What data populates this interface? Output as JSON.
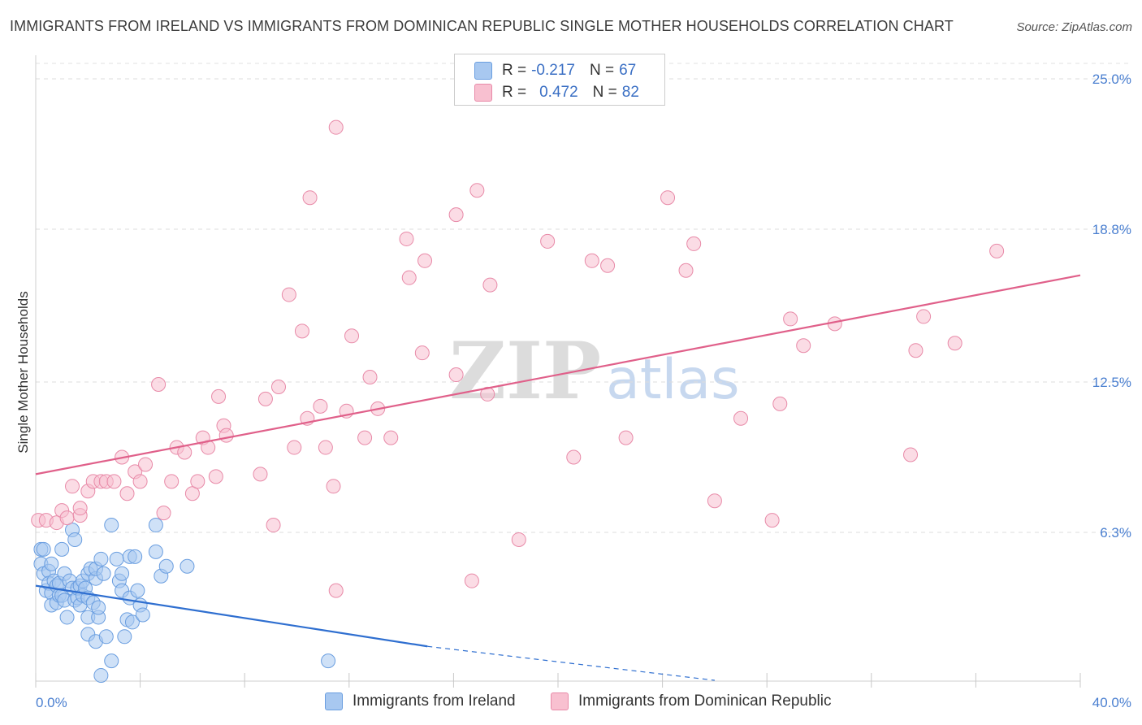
{
  "title": "IMMIGRANTS FROM IRELAND VS IMMIGRANTS FROM DOMINICAN REPUBLIC SINGLE MOTHER HOUSEHOLDS CORRELATION CHART",
  "source": "Source: ZipAtlas.com",
  "watermark": {
    "zip": "ZIP",
    "atlas": "atlas"
  },
  "legend": {
    "rows": [
      {
        "r_label": "R =",
        "r_value": "-0.217",
        "n_label": "N =",
        "n_value": "67",
        "color": "#a8c8f0",
        "border": "#6a9ee0"
      },
      {
        "r_label": "R =",
        "r_value": "0.472",
        "n_label": "N =",
        "n_value": "82",
        "color": "#f8c0d0",
        "border": "#e88aa8"
      }
    ]
  },
  "bottom_legend": [
    {
      "label": "Immigrants from Ireland",
      "color": "#a8c8f0",
      "border": "#6a9ee0"
    },
    {
      "label": "Immigrants from Dominican Republic",
      "color": "#f8c0d0",
      "border": "#e88aa8"
    }
  ],
  "chart_data": {
    "type": "scatter",
    "title": "IMMIGRANTS FROM IRELAND VS IMMIGRANTS FROM DOMINICAN REPUBLIC SINGLE MOTHER HOUSEHOLDS CORRELATION CHART",
    "xlabel": "",
    "ylabel": "Single Mother Households",
    "xlim": [
      0,
      40
    ],
    "ylim": [
      0,
      26
    ],
    "x_tick_labels": [
      "0.0%",
      "40.0%"
    ],
    "y_ticks": [
      6.3,
      12.5,
      18.8,
      25.0
    ],
    "y_tick_labels": [
      "6.3%",
      "12.5%",
      "18.8%",
      "25.0%"
    ],
    "grid": true,
    "legend_position": "top-center",
    "series": [
      {
        "name": "Immigrants from Ireland",
        "color": "#6a9ee0",
        "fill": "#a8c8f0",
        "trend": {
          "x": [
            0,
            15
          ],
          "y": [
            4.1,
            1.6
          ],
          "dashed_to": [
            26,
            0.2
          ],
          "color": "#2f6fd0"
        },
        "points": [
          [
            0.2,
            5.0
          ],
          [
            0.2,
            5.6
          ],
          [
            0.3,
            5.6
          ],
          [
            0.3,
            4.6
          ],
          [
            0.4,
            3.9
          ],
          [
            0.5,
            4.7
          ],
          [
            0.5,
            4.2
          ],
          [
            0.6,
            3.8
          ],
          [
            0.6,
            5.0
          ],
          [
            0.6,
            3.3
          ],
          [
            0.7,
            4.3
          ],
          [
            0.8,
            4.1
          ],
          [
            0.8,
            3.4
          ],
          [
            0.9,
            3.7
          ],
          [
            0.9,
            4.2
          ],
          [
            1.0,
            5.6
          ],
          [
            1.0,
            3.7
          ],
          [
            1.1,
            3.5
          ],
          [
            1.1,
            4.6
          ],
          [
            1.2,
            2.8
          ],
          [
            1.3,
            4.3
          ],
          [
            1.4,
            6.4
          ],
          [
            1.4,
            4.0
          ],
          [
            1.5,
            6.0
          ],
          [
            1.5,
            3.5
          ],
          [
            1.6,
            3.6
          ],
          [
            1.6,
            4.0
          ],
          [
            1.7,
            3.3
          ],
          [
            1.7,
            4.1
          ],
          [
            1.8,
            3.7
          ],
          [
            1.8,
            4.3
          ],
          [
            1.9,
            4.0
          ],
          [
            2.0,
            2.1
          ],
          [
            2.0,
            2.8
          ],
          [
            2.0,
            3.6
          ],
          [
            2.0,
            4.6
          ],
          [
            2.1,
            4.8
          ],
          [
            2.2,
            3.4
          ],
          [
            2.3,
            1.8
          ],
          [
            2.3,
            4.4
          ],
          [
            2.3,
            4.8
          ],
          [
            2.4,
            2.8
          ],
          [
            2.4,
            3.2
          ],
          [
            2.5,
            5.2
          ],
          [
            2.5,
            0.4
          ],
          [
            2.6,
            4.6
          ],
          [
            2.7,
            2.0
          ],
          [
            2.9,
            6.6
          ],
          [
            2.9,
            1.0
          ],
          [
            3.1,
            5.2
          ],
          [
            3.2,
            4.3
          ],
          [
            3.3,
            4.6
          ],
          [
            3.3,
            3.9
          ],
          [
            3.4,
            2.0
          ],
          [
            3.5,
            2.7
          ],
          [
            3.6,
            5.3
          ],
          [
            3.6,
            3.6
          ],
          [
            3.7,
            2.6
          ],
          [
            3.8,
            5.3
          ],
          [
            3.9,
            3.9
          ],
          [
            4.0,
            3.3
          ],
          [
            4.1,
            2.9
          ],
          [
            4.6,
            6.6
          ],
          [
            4.6,
            5.5
          ],
          [
            4.8,
            4.5
          ],
          [
            5.0,
            4.9
          ],
          [
            5.8,
            4.9
          ],
          [
            11.2,
            1.0
          ]
        ]
      },
      {
        "name": "Immigrants from Dominican Republic",
        "color": "#e88aa8",
        "fill": "#f8c0d0",
        "trend": {
          "x": [
            0,
            40
          ],
          "y": [
            8.7,
            16.9
          ],
          "color": "#e0608a"
        },
        "points": [
          [
            0.1,
            6.8
          ],
          [
            0.4,
            6.8
          ],
          [
            0.8,
            6.7
          ],
          [
            1.0,
            7.2
          ],
          [
            1.2,
            6.9
          ],
          [
            1.7,
            7.0
          ],
          [
            1.4,
            8.2
          ],
          [
            1.7,
            7.3
          ],
          [
            2.0,
            8.0
          ],
          [
            2.2,
            8.4
          ],
          [
            2.5,
            8.4
          ],
          [
            2.7,
            8.4
          ],
          [
            3.0,
            8.4
          ],
          [
            3.3,
            9.4
          ],
          [
            3.5,
            7.9
          ],
          [
            3.8,
            8.8
          ],
          [
            4.0,
            8.4
          ],
          [
            4.2,
            9.1
          ],
          [
            4.7,
            12.4
          ],
          [
            4.9,
            7.1
          ],
          [
            5.2,
            8.4
          ],
          [
            5.4,
            9.8
          ],
          [
            5.7,
            9.6
          ],
          [
            6.0,
            7.9
          ],
          [
            6.2,
            8.4
          ],
          [
            6.4,
            10.2
          ],
          [
            6.6,
            9.8
          ],
          [
            6.9,
            8.6
          ],
          [
            7.0,
            11.9
          ],
          [
            7.2,
            10.7
          ],
          [
            7.3,
            10.3
          ],
          [
            8.6,
            8.7
          ],
          [
            8.8,
            11.8
          ],
          [
            9.1,
            6.6
          ],
          [
            9.3,
            12.3
          ],
          [
            9.7,
            16.1
          ],
          [
            9.9,
            9.8
          ],
          [
            10.2,
            14.6
          ],
          [
            10.4,
            11.0
          ],
          [
            10.5,
            20.1
          ],
          [
            10.9,
            11.5
          ],
          [
            11.1,
            9.8
          ],
          [
            11.4,
            8.2
          ],
          [
            11.5,
            3.9
          ],
          [
            11.9,
            11.3
          ],
          [
            12.1,
            14.4
          ],
          [
            12.6,
            10.2
          ],
          [
            12.8,
            12.7
          ],
          [
            13.1,
            11.4
          ],
          [
            13.6,
            10.2
          ],
          [
            14.2,
            18.4
          ],
          [
            14.3,
            16.8
          ],
          [
            14.8,
            13.7
          ],
          [
            14.9,
            17.5
          ],
          [
            16.1,
            19.4
          ],
          [
            16.1,
            12.8
          ],
          [
            16.7,
            4.3
          ],
          [
            16.9,
            20.4
          ],
          [
            17.3,
            12.0
          ],
          [
            17.4,
            16.5
          ],
          [
            18.5,
            6.0
          ],
          [
            19.6,
            18.3
          ],
          [
            20.6,
            9.4
          ],
          [
            21.3,
            17.5
          ],
          [
            21.9,
            17.3
          ],
          [
            22.6,
            10.2
          ],
          [
            24.2,
            20.1
          ],
          [
            24.9,
            17.1
          ],
          [
            25.2,
            18.2
          ],
          [
            26.0,
            7.6
          ],
          [
            27.0,
            11.0
          ],
          [
            28.2,
            6.8
          ],
          [
            28.5,
            11.6
          ],
          [
            28.9,
            15.1
          ],
          [
            29.4,
            14.0
          ],
          [
            30.6,
            14.9
          ],
          [
            33.5,
            9.5
          ],
          [
            33.7,
            13.8
          ],
          [
            34.0,
            15.2
          ],
          [
            35.2,
            14.1
          ],
          [
            36.8,
            17.9
          ],
          [
            11.5,
            23.0
          ]
        ]
      }
    ]
  }
}
